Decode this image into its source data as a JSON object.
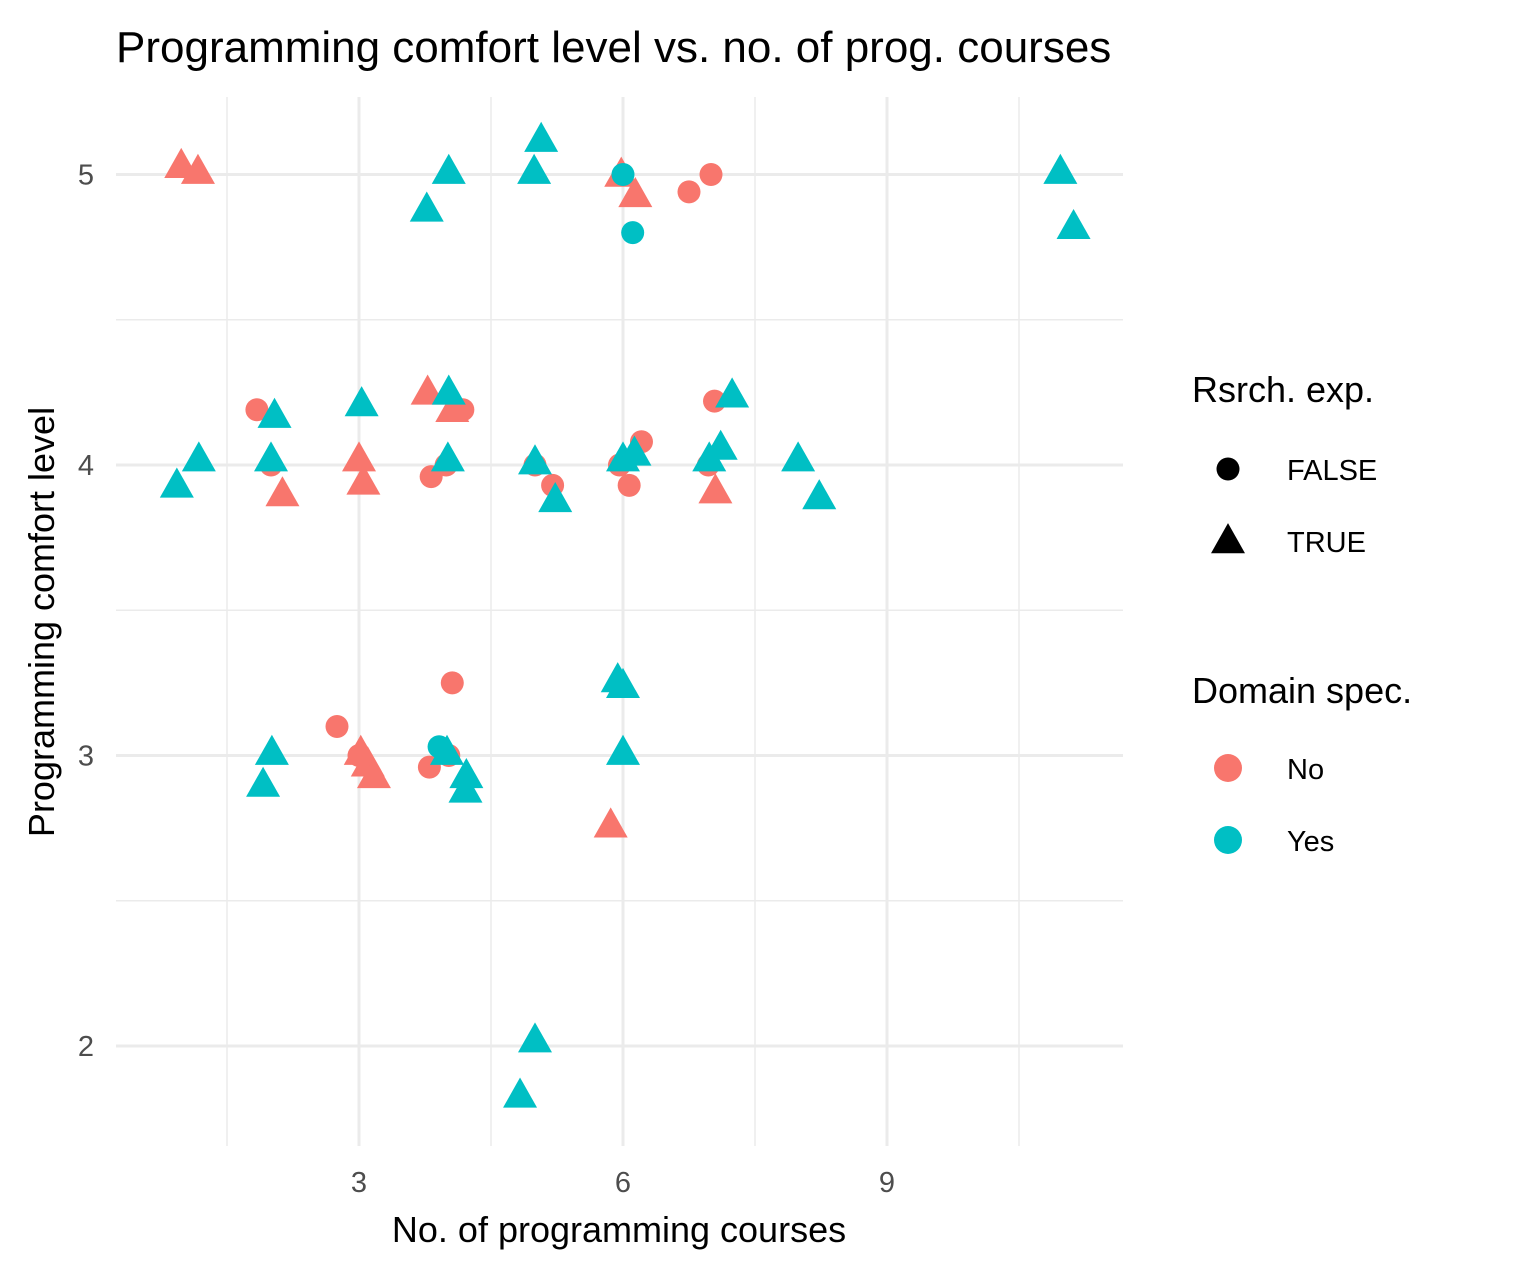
{
  "chart_data": {
    "type": "scatter",
    "title": "Programming comfort level vs. no. of prog. courses",
    "xlabel": "No. of programming courses",
    "ylabel": "Programming comfort level",
    "xlim": [
      0.2,
      11.8
    ],
    "ylim": [
      1.7,
      5.25
    ],
    "xticks": [
      3,
      6,
      9
    ],
    "yticks": [
      2,
      3,
      4,
      5
    ],
    "grid": true,
    "legend_placement": "right",
    "shape_legend": {
      "title": "Rsrch. exp.",
      "entries": [
        {
          "label": "FALSE",
          "shape": "circle"
        },
        {
          "label": "TRUE",
          "shape": "triangle"
        }
      ]
    },
    "color_legend": {
      "title": "Domain spec.",
      "entries": [
        {
          "label": "No",
          "color": "#F8766D"
        },
        {
          "label": "Yes",
          "color": "#00BFC4"
        }
      ]
    },
    "points": [
      {
        "x": 0.98,
        "y": 5.03,
        "rsrch": "TRUE",
        "domain": "No"
      },
      {
        "x": 1.17,
        "y": 5.01,
        "rsrch": "TRUE",
        "domain": "No"
      },
      {
        "x": 5.98,
        "y": 5.0,
        "rsrch": "TRUE",
        "domain": "No"
      },
      {
        "x": 6.14,
        "y": 4.93,
        "rsrch": "TRUE",
        "domain": "No"
      },
      {
        "x": 6.75,
        "y": 4.94,
        "rsrch": "FALSE",
        "domain": "No"
      },
      {
        "x": 7.0,
        "y": 5.0,
        "rsrch": "FALSE",
        "domain": "No"
      },
      {
        "x": 6.0,
        "y": 5.0,
        "rsrch": "FALSE",
        "domain": "Yes"
      },
      {
        "x": 6.11,
        "y": 4.8,
        "rsrch": "FALSE",
        "domain": "Yes"
      },
      {
        "x": 3.77,
        "y": 4.88,
        "rsrch": "TRUE",
        "domain": "Yes"
      },
      {
        "x": 4.02,
        "y": 5.01,
        "rsrch": "TRUE",
        "domain": "Yes"
      },
      {
        "x": 4.99,
        "y": 5.01,
        "rsrch": "TRUE",
        "domain": "Yes"
      },
      {
        "x": 5.07,
        "y": 5.12,
        "rsrch": "TRUE",
        "domain": "Yes"
      },
      {
        "x": 10.97,
        "y": 5.01,
        "rsrch": "TRUE",
        "domain": "Yes"
      },
      {
        "x": 11.12,
        "y": 4.82,
        "rsrch": "TRUE",
        "domain": "Yes"
      },
      {
        "x": 1.84,
        "y": 4.19,
        "rsrch": "FALSE",
        "domain": "No"
      },
      {
        "x": 2.0,
        "y": 4.0,
        "rsrch": "FALSE",
        "domain": "No"
      },
      {
        "x": 3.82,
        "y": 3.96,
        "rsrch": "FALSE",
        "domain": "No"
      },
      {
        "x": 3.99,
        "y": 4.0,
        "rsrch": "FALSE",
        "domain": "No"
      },
      {
        "x": 4.18,
        "y": 4.19,
        "rsrch": "FALSE",
        "domain": "No"
      },
      {
        "x": 5.0,
        "y": 4.0,
        "rsrch": "FALSE",
        "domain": "No"
      },
      {
        "x": 5.2,
        "y": 3.93,
        "rsrch": "FALSE",
        "domain": "No"
      },
      {
        "x": 5.96,
        "y": 4.0,
        "rsrch": "FALSE",
        "domain": "No"
      },
      {
        "x": 6.07,
        "y": 3.93,
        "rsrch": "FALSE",
        "domain": "No"
      },
      {
        "x": 6.21,
        "y": 4.08,
        "rsrch": "FALSE",
        "domain": "No"
      },
      {
        "x": 6.97,
        "y": 4.0,
        "rsrch": "FALSE",
        "domain": "No"
      },
      {
        "x": 7.04,
        "y": 4.22,
        "rsrch": "FALSE",
        "domain": "No"
      },
      {
        "x": 2.13,
        "y": 3.9,
        "rsrch": "TRUE",
        "domain": "No"
      },
      {
        "x": 3.0,
        "y": 4.02,
        "rsrch": "TRUE",
        "domain": "No"
      },
      {
        "x": 3.05,
        "y": 3.94,
        "rsrch": "TRUE",
        "domain": "No"
      },
      {
        "x": 3.78,
        "y": 4.25,
        "rsrch": "TRUE",
        "domain": "No"
      },
      {
        "x": 4.06,
        "y": 4.19,
        "rsrch": "TRUE",
        "domain": "No"
      },
      {
        "x": 7.05,
        "y": 3.91,
        "rsrch": "TRUE",
        "domain": "No"
      },
      {
        "x": 0.93,
        "y": 3.93,
        "rsrch": "TRUE",
        "domain": "Yes"
      },
      {
        "x": 1.18,
        "y": 4.02,
        "rsrch": "TRUE",
        "domain": "Yes"
      },
      {
        "x": 2.04,
        "y": 4.17,
        "rsrch": "TRUE",
        "domain": "Yes"
      },
      {
        "x": 2.0,
        "y": 4.02,
        "rsrch": "TRUE",
        "domain": "Yes"
      },
      {
        "x": 3.03,
        "y": 4.21,
        "rsrch": "TRUE",
        "domain": "Yes"
      },
      {
        "x": 4.02,
        "y": 4.25,
        "rsrch": "TRUE",
        "domain": "Yes"
      },
      {
        "x": 4.01,
        "y": 4.02,
        "rsrch": "TRUE",
        "domain": "Yes"
      },
      {
        "x": 5.0,
        "y": 4.01,
        "rsrch": "TRUE",
        "domain": "Yes"
      },
      {
        "x": 5.23,
        "y": 3.88,
        "rsrch": "TRUE",
        "domain": "Yes"
      },
      {
        "x": 6.0,
        "y": 4.02,
        "rsrch": "TRUE",
        "domain": "Yes"
      },
      {
        "x": 6.13,
        "y": 4.04,
        "rsrch": "TRUE",
        "domain": "Yes"
      },
      {
        "x": 6.98,
        "y": 4.02,
        "rsrch": "TRUE",
        "domain": "Yes"
      },
      {
        "x": 7.11,
        "y": 4.06,
        "rsrch": "TRUE",
        "domain": "Yes"
      },
      {
        "x": 7.24,
        "y": 4.24,
        "rsrch": "TRUE",
        "domain": "Yes"
      },
      {
        "x": 7.99,
        "y": 4.02,
        "rsrch": "TRUE",
        "domain": "Yes"
      },
      {
        "x": 8.23,
        "y": 3.89,
        "rsrch": "TRUE",
        "domain": "Yes"
      },
      {
        "x": 2.75,
        "y": 3.1,
        "rsrch": "FALSE",
        "domain": "No"
      },
      {
        "x": 3.0,
        "y": 3.0,
        "rsrch": "FALSE",
        "domain": "No"
      },
      {
        "x": 3.8,
        "y": 2.96,
        "rsrch": "FALSE",
        "domain": "No"
      },
      {
        "x": 4.02,
        "y": 3.0,
        "rsrch": "FALSE",
        "domain": "No"
      },
      {
        "x": 4.06,
        "y": 3.25,
        "rsrch": "FALSE",
        "domain": "No"
      },
      {
        "x": 3.02,
        "y": 3.01,
        "rsrch": "TRUE",
        "domain": "No"
      },
      {
        "x": 3.1,
        "y": 2.97,
        "rsrch": "TRUE",
        "domain": "No"
      },
      {
        "x": 3.17,
        "y": 2.93,
        "rsrch": "TRUE",
        "domain": "No"
      },
      {
        "x": 5.86,
        "y": 2.76,
        "rsrch": "TRUE",
        "domain": "No"
      },
      {
        "x": 3.91,
        "y": 3.03,
        "rsrch": "FALSE",
        "domain": "Yes"
      },
      {
        "x": 1.91,
        "y": 2.9,
        "rsrch": "TRUE",
        "domain": "Yes"
      },
      {
        "x": 2.01,
        "y": 3.01,
        "rsrch": "TRUE",
        "domain": "Yes"
      },
      {
        "x": 4.0,
        "y": 3.01,
        "rsrch": "TRUE",
        "domain": "Yes"
      },
      {
        "x": 4.22,
        "y": 2.93,
        "rsrch": "TRUE",
        "domain": "Yes"
      },
      {
        "x": 4.21,
        "y": 2.88,
        "rsrch": "TRUE",
        "domain": "Yes"
      },
      {
        "x": 5.94,
        "y": 3.26,
        "rsrch": "TRUE",
        "domain": "Yes"
      },
      {
        "x": 6.0,
        "y": 3.24,
        "rsrch": "TRUE",
        "domain": "Yes"
      },
      {
        "x": 6.0,
        "y": 3.01,
        "rsrch": "TRUE",
        "domain": "Yes"
      },
      {
        "x": 5.0,
        "y": 2.02,
        "rsrch": "TRUE",
        "domain": "Yes"
      },
      {
        "x": 4.83,
        "y": 1.83,
        "rsrch": "TRUE",
        "domain": "Yes"
      }
    ]
  }
}
